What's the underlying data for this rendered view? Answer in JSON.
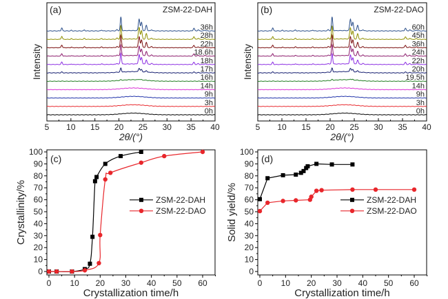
{
  "chart_data": [
    {
      "id": "a",
      "type": "line",
      "panel_label": "(a)",
      "title": "ZSM-22-DAH",
      "xlabel": "2θ/(°)",
      "ylabel": "Intensity",
      "xlim": [
        5,
        40
      ],
      "xticks": [
        5,
        10,
        15,
        20,
        25,
        30,
        35,
        40
      ],
      "grid": false,
      "series": [
        {
          "name": "0h",
          "color": "#000000",
          "crystallinity": 0.0
        },
        {
          "name": "3h",
          "color": "#e8262b",
          "crystallinity": 0.0
        },
        {
          "name": "9h",
          "color": "#1c2fa8",
          "crystallinity": 0.0
        },
        {
          "name": "14h",
          "color": "#d92bd4",
          "crystallinity": 0.0
        },
        {
          "name": "16h",
          "color": "#1d7a1d",
          "crystallinity": 0.05
        },
        {
          "name": "17h",
          "color": "#111a6e",
          "crystallinity": 0.3
        },
        {
          "name": "18h",
          "color": "#8a2be2",
          "crystallinity": 0.8
        },
        {
          "name": "18.6h",
          "color": "#8b1a6b",
          "crystallinity": 0.8
        },
        {
          "name": "22h",
          "color": "#7a0d0d",
          "crystallinity": 0.9
        },
        {
          "name": "28h",
          "color": "#8f8f00",
          "crystallinity": 1.0
        },
        {
          "name": "36h",
          "color": "#2b4f8a",
          "crystallinity": 1.0
        }
      ]
    },
    {
      "id": "b",
      "type": "line",
      "panel_label": "(b)",
      "title": "ZSM-22-DAO",
      "xlabel": "2θ/(°)",
      "ylabel": "Intensity",
      "xlim": [
        5,
        40
      ],
      "xticks": [
        5,
        10,
        15,
        20,
        25,
        30,
        35,
        40
      ],
      "grid": false,
      "series": [
        {
          "name": "0h",
          "color": "#000000",
          "crystallinity": 0.0
        },
        {
          "name": "3h",
          "color": "#e8262b",
          "crystallinity": 0.0
        },
        {
          "name": "9h",
          "color": "#1c2fa8",
          "crystallinity": 0.0
        },
        {
          "name": "14h",
          "color": "#d92bd4",
          "crystallinity": 0.0
        },
        {
          "name": "19.5h",
          "color": "#1d7a1d",
          "crystallinity": 0.07
        },
        {
          "name": "20h",
          "color": "#111a6e",
          "crystallinity": 0.3
        },
        {
          "name": "22h",
          "color": "#8a2be2",
          "crystallinity": 0.77
        },
        {
          "name": "24h",
          "color": "#8b1a6b",
          "crystallinity": 0.82
        },
        {
          "name": "36h",
          "color": "#7a0d0d",
          "crystallinity": 0.91
        },
        {
          "name": "45h",
          "color": "#8f8f00",
          "crystallinity": 0.96
        },
        {
          "name": "60h",
          "color": "#2b4f8a",
          "crystallinity": 1.0
        }
      ]
    },
    {
      "id": "c",
      "type": "scatter",
      "panel_label": "(c)",
      "title": "",
      "xlabel": "Crystallization time/h",
      "ylabel": "Crystallinity/%",
      "xlim": [
        -1,
        65
      ],
      "ylim": [
        0,
        100
      ],
      "xticks": [
        0,
        10,
        20,
        30,
        40,
        50,
        60
      ],
      "yticks": [
        0,
        10,
        20,
        30,
        40,
        50,
        60,
        70,
        80,
        90,
        100
      ],
      "grid": false,
      "legend_position": "center-right",
      "series": [
        {
          "name": "ZSM-22-DAH",
          "color": "#000000",
          "marker": "square",
          "x": [
            0,
            3,
            9,
            14,
            16,
            17,
            18,
            18.6,
            22,
            28,
            36
          ],
          "y": [
            0,
            0,
            0,
            2,
            6.5,
            29,
            75.5,
            79,
            90,
            96.5,
            100
          ]
        },
        {
          "name": "ZSM-22-DAO",
          "color": "#e8262b",
          "marker": "circle",
          "x": [
            0,
            3,
            9,
            14,
            19.5,
            20,
            22,
            24,
            36,
            45,
            60
          ],
          "y": [
            0,
            0,
            0,
            1,
            7,
            30.5,
            77,
            82.5,
            91,
            96.5,
            100
          ]
        }
      ]
    },
    {
      "id": "d",
      "type": "line",
      "panel_label": "(d)",
      "title": "",
      "xlabel": "Crystallization time/h",
      "ylabel": "Solid yield/%",
      "xlim": [
        -1,
        65
      ],
      "ylim": [
        0,
        100
      ],
      "xticks": [
        0,
        10,
        20,
        30,
        40,
        50,
        60
      ],
      "yticks": [
        0,
        10,
        20,
        30,
        40,
        50,
        60,
        70,
        80,
        90,
        100
      ],
      "grid": false,
      "legend_position": "center-right",
      "series": [
        {
          "name": "ZSM-22-DAH",
          "color": "#000000",
          "marker": "square",
          "x": [
            0,
            3,
            9,
            14,
            16,
            17,
            18,
            18.6,
            22,
            28,
            36
          ],
          "y": [
            60.5,
            78,
            80.5,
            81,
            82.5,
            84,
            86.5,
            88,
            90,
            89.5,
            89.5
          ]
        },
        {
          "name": "ZSM-22-DAO",
          "color": "#e8262b",
          "marker": "circle",
          "x": [
            0,
            3,
            9,
            14,
            19.5,
            20,
            22,
            24,
            36,
            45,
            60
          ],
          "y": [
            50.5,
            57.5,
            59,
            59.5,
            60,
            62.5,
            67.5,
            68,
            68.5,
            68.5,
            68.5
          ]
        }
      ]
    }
  ]
}
